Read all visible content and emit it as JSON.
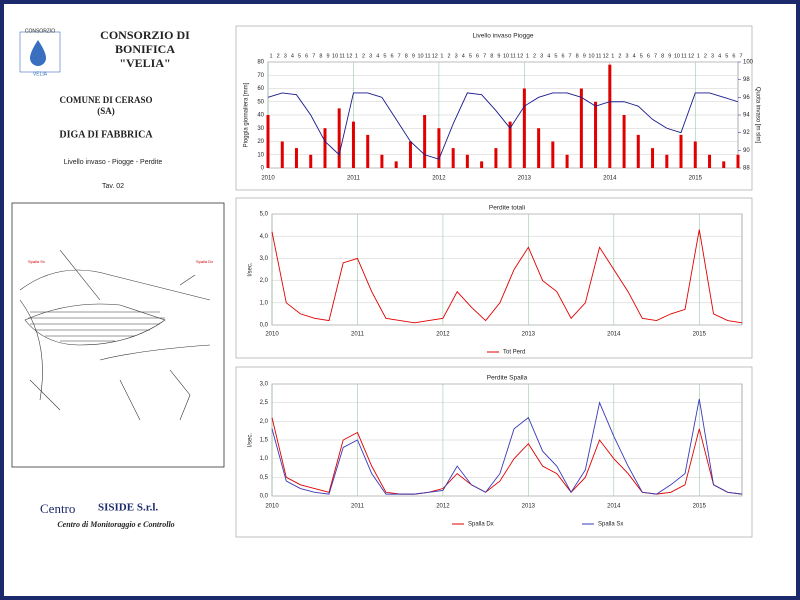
{
  "header": {
    "logo_top": "CONSORZIO",
    "logo_bottom": "VELIA",
    "title_lines": [
      "CONSORZIO DI",
      "BONIFICA",
      "\"VELIA\""
    ],
    "comune": "COMUNE DI CERASO",
    "provincia": "(SA)",
    "diga": "DIGA DI FABBRICA",
    "subtitle": "Livello invaso - Piogge - Perdite",
    "tavola": "Tav. 02"
  },
  "map": {
    "left_label": "Spalla Sx",
    "right_label": "Spalla Dx"
  },
  "footer": {
    "company_a": "Centro",
    "company_b": "SISIDE S.r.l.",
    "tagline": "Centro di Monitoraggio e Controllo"
  },
  "chart_data": [
    {
      "type": "bar_line",
      "title": "Livello invaso Piogge",
      "y_label": "Pioggia giornaliera [mm]",
      "y2_label": "Quota invaso [m slm]",
      "month_labels": [
        1,
        2,
        3,
        4,
        5,
        6,
        7,
        8,
        9,
        10,
        11,
        12,
        1,
        2,
        3,
        4,
        5,
        6,
        7,
        8,
        9,
        10,
        11,
        12,
        1,
        2,
        3,
        4,
        5,
        6,
        7,
        8,
        9,
        10,
        11,
        12,
        1,
        2,
        3,
        4,
        5,
        6,
        7,
        8,
        9,
        10,
        11,
        12,
        1,
        2,
        3,
        4,
        5,
        6,
        7,
        8,
        9,
        10,
        11,
        12,
        1,
        2,
        3,
        4,
        5,
        6,
        7
      ],
      "x": [
        2010,
        2010.167,
        2010.333,
        2010.5,
        2010.667,
        2010.833,
        2011,
        2011.167,
        2011.333,
        2011.5,
        2011.667,
        2011.833,
        2012,
        2012.167,
        2012.333,
        2012.5,
        2012.667,
        2012.833,
        2013,
        2013.167,
        2013.333,
        2013.5,
        2013.667,
        2013.833,
        2014,
        2014.167,
        2014.333,
        2014.5,
        2014.667,
        2014.833,
        2015,
        2015.167,
        2015.333,
        2015.5
      ],
      "xlim": [
        2010,
        2015.5
      ],
      "xticks": [
        2010,
        2011,
        2012,
        2013,
        2014,
        2015
      ],
      "ylim": [
        0,
        80
      ],
      "yticks": [
        0,
        10,
        20,
        30,
        40,
        50,
        60,
        70,
        80
      ],
      "y2lim": [
        88,
        100
      ],
      "y2ticks": [
        88,
        90,
        92,
        94,
        96,
        98,
        100
      ],
      "grid": true,
      "series": [
        {
          "kind": "bar",
          "color": "#e00000",
          "values": [
            40,
            20,
            15,
            10,
            30,
            45,
            35,
            25,
            10,
            5,
            20,
            40,
            30,
            15,
            10,
            5,
            15,
            35,
            60,
            30,
            20,
            10,
            60,
            50,
            78,
            40,
            25,
            15,
            10,
            25,
            20,
            10,
            5,
            10
          ]
        },
        {
          "kind": "line",
          "axis": "y2",
          "color": "#1a1a8c",
          "values": [
            96,
            96.5,
            96.3,
            94,
            91,
            89.5,
            96.5,
            96.5,
            96,
            93.5,
            91,
            89.5,
            89,
            93,
            96.5,
            96.3,
            94.5,
            92.5,
            95,
            96,
            96.5,
            96.5,
            96,
            95,
            95.5,
            95.5,
            95,
            93.5,
            92.5,
            92,
            96.5,
            96.5,
            96,
            95.5
          ]
        }
      ]
    },
    {
      "type": "line",
      "title": "Perdite totali",
      "y_label": "l/sec.",
      "legend": "bottom",
      "x": [
        2010,
        2010.167,
        2010.333,
        2010.5,
        2010.667,
        2010.833,
        2011,
        2011.167,
        2011.333,
        2011.5,
        2011.667,
        2011.833,
        2012,
        2012.167,
        2012.333,
        2012.5,
        2012.667,
        2012.833,
        2013,
        2013.167,
        2013.333,
        2013.5,
        2013.667,
        2013.833,
        2014,
        2014.167,
        2014.333,
        2014.5,
        2014.667,
        2014.833,
        2015,
        2015.167,
        2015.333,
        2015.5
      ],
      "xlim": [
        2010,
        2015.5
      ],
      "xticks": [
        2010,
        2011,
        2012,
        2013,
        2014,
        2015
      ],
      "ylim": [
        0,
        5
      ],
      "yticks": [
        {
          "value": 0,
          "label": "0,0"
        },
        {
          "value": 1,
          "label": "1,0"
        },
        {
          "value": 2,
          "label": "2,0"
        },
        {
          "value": 3,
          "label": "3,0"
        },
        {
          "value": 4,
          "label": "4,0"
        },
        {
          "value": 5,
          "label": "5,0"
        }
      ],
      "grid": true,
      "series": [
        {
          "name": "Tot Perd",
          "color": "#e00000",
          "values": [
            4.2,
            1.0,
            0.5,
            0.3,
            0.2,
            2.8,
            3.0,
            1.5,
            0.3,
            0.2,
            0.1,
            0.2,
            0.3,
            1.5,
            0.8,
            0.2,
            1.0,
            2.5,
            3.5,
            2.0,
            1.5,
            0.3,
            1.0,
            3.5,
            2.5,
            1.5,
            0.3,
            0.2,
            0.5,
            0.7,
            4.3,
            0.5,
            0.2,
            0.1
          ]
        }
      ]
    },
    {
      "type": "line",
      "title": "Perdite Spalla",
      "y_label": "l/sec.",
      "legend": "bottom",
      "x": [
        2010,
        2010.167,
        2010.333,
        2010.5,
        2010.667,
        2010.833,
        2011,
        2011.167,
        2011.333,
        2011.5,
        2011.667,
        2011.833,
        2012,
        2012.167,
        2012.333,
        2012.5,
        2012.667,
        2012.833,
        2013,
        2013.167,
        2013.333,
        2013.5,
        2013.667,
        2013.833,
        2014,
        2014.167,
        2014.333,
        2014.5,
        2014.667,
        2014.833,
        2015,
        2015.167,
        2015.333,
        2015.5
      ],
      "xlim": [
        2010,
        2015.5
      ],
      "xticks": [
        2010,
        2011,
        2012,
        2013,
        2014,
        2015
      ],
      "ylim": [
        0,
        3
      ],
      "yticks": [
        {
          "value": 0,
          "label": "0,0"
        },
        {
          "value": 0.5,
          "label": "0,5"
        },
        {
          "value": 1,
          "label": "1,0"
        },
        {
          "value": 1.5,
          "label": "1,5"
        },
        {
          "value": 2,
          "label": "2,0"
        },
        {
          "value": 2.5,
          "label": "2,5"
        },
        {
          "value": 3,
          "label": "3,0"
        }
      ],
      "grid": true,
      "series": [
        {
          "name": "Spalla Dx",
          "color": "#e00000",
          "values": [
            2.1,
            0.5,
            0.3,
            0.2,
            0.1,
            1.5,
            1.7,
            0.8,
            0.1,
            0.05,
            0.05,
            0.1,
            0.2,
            0.6,
            0.3,
            0.1,
            0.4,
            1.0,
            1.4,
            0.8,
            0.6,
            0.1,
            0.5,
            1.5,
            1.0,
            0.6,
            0.1,
            0.05,
            0.1,
            0.3,
            1.8,
            0.3,
            0.1,
            0.05
          ]
        },
        {
          "name": "Spalla Sx",
          "color": "#3a3ab8",
          "values": [
            1.8,
            0.4,
            0.2,
            0.1,
            0.05,
            1.3,
            1.5,
            0.6,
            0.05,
            0.05,
            0.05,
            0.1,
            0.15,
            0.8,
            0.3,
            0.1,
            0.6,
            1.8,
            2.1,
            1.2,
            0.8,
            0.1,
            0.7,
            2.5,
            1.6,
            0.8,
            0.1,
            0.05,
            0.3,
            0.6,
            2.6,
            0.3,
            0.1,
            0.05
          ]
        }
      ]
    }
  ]
}
